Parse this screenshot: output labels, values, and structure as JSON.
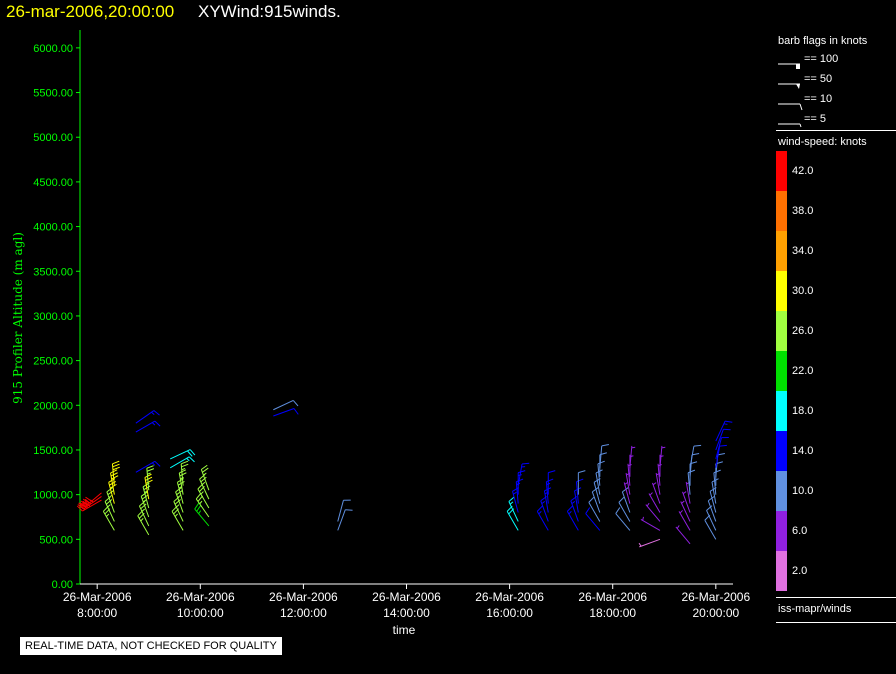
{
  "header": {
    "datetime": "26-mar-2006,20:00:00",
    "product": "XYWind:915winds."
  },
  "qc_notice": "REAL-TIME DATA, NOT CHECKED FOR QUALITY",
  "legend": {
    "barb_title": "barb flags in knots",
    "barb_flags": [
      {
        "label": "== 100",
        "kind": "flag100"
      },
      {
        "label": "== 50",
        "kind": "flag50"
      },
      {
        "label": "== 10",
        "kind": "barb10"
      },
      {
        "label": "== 5",
        "kind": "barb5"
      }
    ],
    "speed_title": "wind-speed: knots",
    "speed_bins": [
      {
        "label": "42.0",
        "color": "#ff0000"
      },
      {
        "label": "38.0",
        "color": "#ff7000"
      },
      {
        "label": "34.0",
        "color": "#ffa000"
      },
      {
        "label": "30.0",
        "color": "#ffff00"
      },
      {
        "label": "26.0",
        "color": "#a0ff40"
      },
      {
        "label": "22.0",
        "color": "#00e000"
      },
      {
        "label": "18.0",
        "color": "#00ffff"
      },
      {
        "label": "14.0",
        "color": "#0000ff"
      },
      {
        "label": "10.0",
        "color": "#6090e0"
      },
      {
        "label": "6.0",
        "color": "#9020e0"
      },
      {
        "label": "2.0",
        "color": "#e070e0"
      }
    ],
    "source": "iss-mapr/winds"
  },
  "chart_data": {
    "type": "scatter",
    "marker": "wind-barb",
    "title": "",
    "xlabel": "time",
    "ylabel": "915 Profiler Altitude (m agl)",
    "ylim": [
      0,
      6200
    ],
    "xlim": [
      "2006-03-26 07:40",
      "2006-03-26 20:20"
    ],
    "x_ticks": [
      {
        "t": "2006-03-26 08:00",
        "label1": "26-Mar-2006",
        "label2": "8:00:00"
      },
      {
        "t": "2006-03-26 10:00",
        "label1": "26-Mar-2006",
        "label2": "10:00:00"
      },
      {
        "t": "2006-03-26 12:00",
        "label1": "26-Mar-2006",
        "label2": "12:00:00"
      },
      {
        "t": "2006-03-26 14:00",
        "label1": "26-Mar-2006",
        "label2": "14:00:00"
      },
      {
        "t": "2006-03-26 16:00",
        "label1": "26-Mar-2006",
        "label2": "16:00:00"
      },
      {
        "t": "2006-03-26 18:00",
        "label1": "26-Mar-2006",
        "label2": "18:00:00"
      },
      {
        "t": "2006-03-26 20:00",
        "label1": "26-Mar-2006",
        "label2": "20:00:00"
      }
    ],
    "y_ticks": [
      "0.00",
      "500.00",
      "1000.00",
      "1500.00",
      "2000.00",
      "2500.00",
      "3000.00",
      "3500.00",
      "4000.00",
      "4500.00",
      "5000.00",
      "5500.00",
      "6000.00"
    ],
    "y_tick_values": [
      0,
      500,
      1000,
      1500,
      2000,
      2500,
      3000,
      3500,
      4000,
      4500,
      5000,
      5500,
      6000
    ],
    "colors": {
      "axis": "#ffffff",
      "y_axis": "#00ff00",
      "ylabel": "#00ff00"
    },
    "profiles": [
      {
        "time": "2006-03-26 08:20",
        "heights": [
          600,
          700,
          800,
          900,
          1000,
          1100
        ],
        "speeds": [
          26,
          26,
          27,
          28,
          30,
          31
        ],
        "dirs": [
          330,
          335,
          340,
          345,
          350,
          355
        ]
      },
      {
        "time": "2006-03-26 08:05",
        "heights": [
          940,
          980,
          1020
        ],
        "speeds": [
          42,
          43,
          42
        ],
        "dirs": [
          240,
          235,
          230
        ]
      },
      {
        "time": "2006-03-26 09:00",
        "heights": [
          550,
          650,
          750,
          850,
          950,
          1050
        ],
        "speeds": [
          24,
          25,
          26,
          27,
          28,
          27
        ],
        "dirs": [
          330,
          335,
          340,
          345,
          350,
          355
        ]
      },
      {
        "time": "2006-03-26 09:40",
        "heights": [
          600,
          700,
          800,
          900,
          1000,
          1100
        ],
        "speeds": [
          24,
          25,
          26,
          26,
          27,
          27
        ],
        "dirs": [
          330,
          335,
          340,
          345,
          350,
          355
        ]
      },
      {
        "time": "2006-03-26 10:10",
        "heights": [
          650,
          750,
          850,
          950,
          1050
        ],
        "speeds": [
          23,
          24,
          25,
          25,
          26
        ],
        "dirs": [
          320,
          325,
          330,
          335,
          340
        ]
      },
      {
        "time": "2006-03-26 08:45",
        "heights": [
          1250,
          1700,
          1800
        ],
        "speeds": [
          14,
          14,
          13
        ],
        "dirs": [
          60,
          60,
          55
        ]
      },
      {
        "time": "2006-03-26 09:25",
        "heights": [
          1300,
          1400
        ],
        "speeds": [
          17,
          18
        ],
        "dirs": [
          60,
          65
        ]
      },
      {
        "time": "2006-03-26 11:25",
        "heights": [
          1880,
          1950
        ],
        "speeds": [
          12,
          11
        ],
        "dirs": [
          70,
          65
        ]
      },
      {
        "time": "2006-03-26 12:40",
        "heights": [
          600,
          700
        ],
        "speeds": [
          10,
          11
        ],
        "dirs": [
          20,
          15
        ]
      },
      {
        "time": "2006-03-26 16:10",
        "heights": [
          600,
          700,
          800,
          900,
          1000,
          1100
        ],
        "speeds": [
          18,
          16,
          15,
          14,
          14,
          13
        ],
        "dirs": [
          330,
          335,
          345,
          355,
          0,
          10
        ]
      },
      {
        "time": "2006-03-26 16:45",
        "heights": [
          600,
          700,
          800,
          900,
          1000
        ],
        "speeds": [
          14,
          14,
          13,
          13,
          12
        ],
        "dirs": [
          330,
          340,
          350,
          355,
          0
        ]
      },
      {
        "time": "2006-03-26 17:20",
        "heights": [
          600,
          700,
          800,
          900,
          1000
        ],
        "speeds": [
          14,
          13,
          12,
          12,
          11
        ],
        "dirs": [
          330,
          340,
          350,
          355,
          0
        ]
      },
      {
        "time": "2006-03-26 17:45",
        "heights": [
          600,
          700,
          800,
          900,
          1000,
          1100,
          1200,
          1300
        ],
        "speeds": [
          12,
          11,
          11,
          10,
          10,
          9,
          9,
          8
        ],
        "dirs": [
          320,
          330,
          340,
          345,
          350,
          355,
          0,
          5
        ]
      },
      {
        "time": "2006-03-26 18:20",
        "heights": [
          600,
          700,
          800,
          900,
          1000,
          1100,
          1200,
          1300
        ],
        "speeds": [
          9,
          8,
          8,
          7,
          7,
          7,
          6,
          6
        ],
        "dirs": [
          320,
          330,
          340,
          345,
          350,
          355,
          0,
          5
        ]
      },
      {
        "time": "2006-03-26 18:55",
        "heights": [
          500,
          600,
          700,
          800,
          900,
          1000,
          1100,
          1200,
          1300
        ],
        "speeds": [
          3,
          4,
          5,
          6,
          6,
          6,
          7,
          7,
          7
        ],
        "dirs": [
          250,
          300,
          320,
          330,
          340,
          350,
          355,
          0,
          5
        ]
      },
      {
        "time": "2006-03-26 19:30",
        "heights": [
          450,
          600,
          700,
          800,
          900,
          1000,
          1100,
          1200,
          1300
        ],
        "speeds": [
          6,
          6,
          7,
          7,
          7,
          8,
          8,
          8,
          9
        ],
        "dirs": [
          320,
          330,
          335,
          340,
          350,
          355,
          0,
          5,
          10
        ]
      },
      {
        "time": "2006-03-26 20:00",
        "heights": [
          500,
          600,
          700,
          800,
          900,
          1000,
          1100,
          1200,
          1300,
          1400,
          1500,
          1600
        ],
        "speeds": [
          8,
          8,
          9,
          9,
          10,
          10,
          11,
          11,
          12,
          12,
          12,
          13
        ],
        "dirs": [
          330,
          335,
          340,
          345,
          350,
          355,
          0,
          5,
          10,
          15,
          20,
          25
        ]
      }
    ]
  }
}
